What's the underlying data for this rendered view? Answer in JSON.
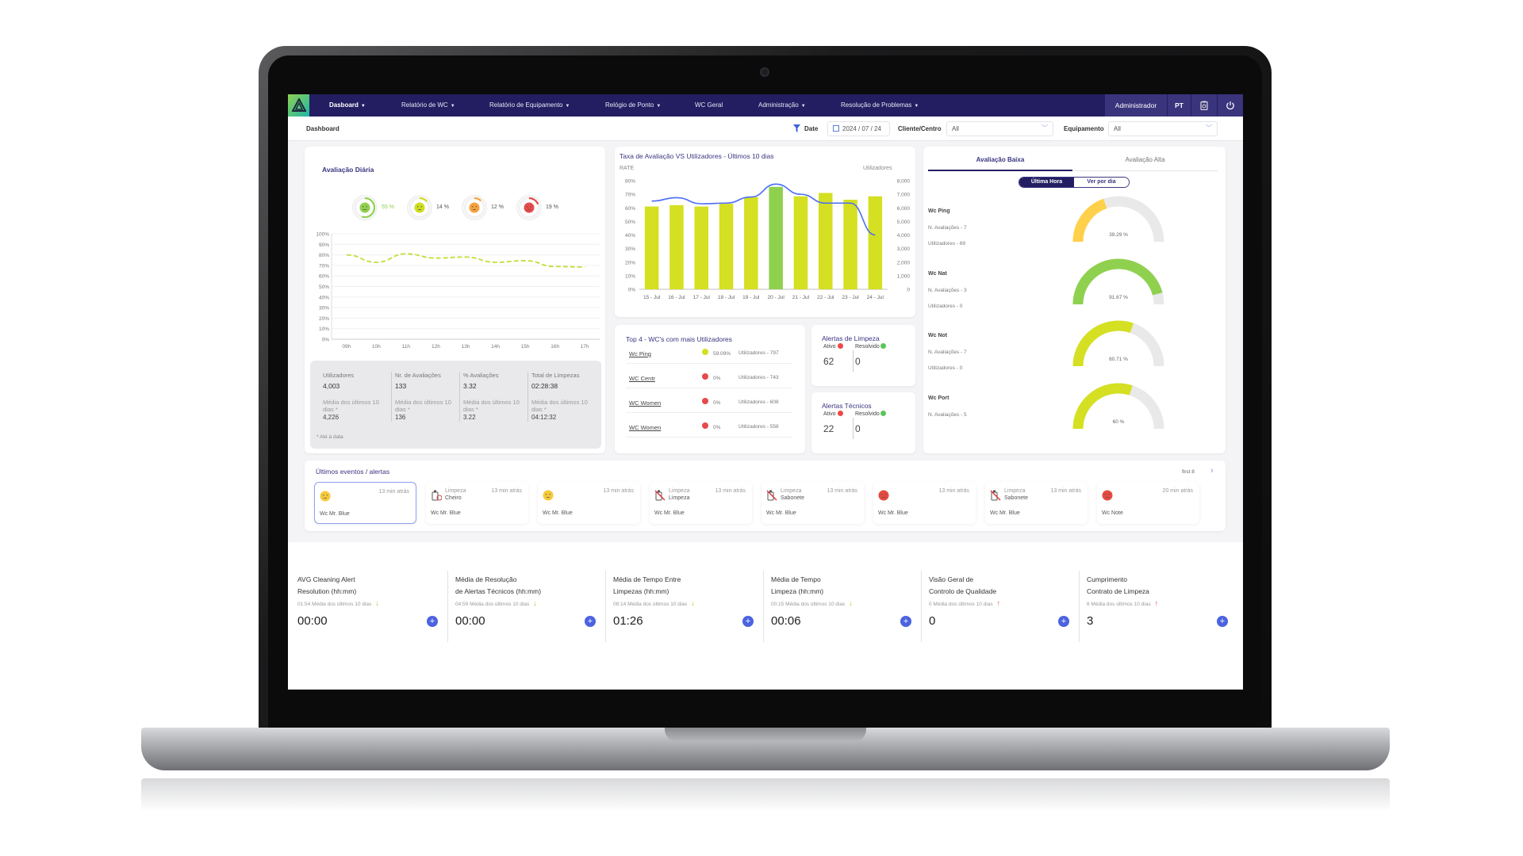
{
  "nav": {
    "items": [
      {
        "label": "Dasboard",
        "caret": true,
        "active": true
      },
      {
        "label": "Relatório de WC",
        "caret": true
      },
      {
        "label": "Relatório de Equipamento",
        "caret": true
      },
      {
        "label": "Relógio de Ponto",
        "caret": true
      },
      {
        "label": "WC Geral",
        "caret": false
      },
      {
        "label": "Administração",
        "caret": true
      },
      {
        "label": "Resolução de Problemas",
        "caret": true
      }
    ],
    "user": "Administrador",
    "language": "PT",
    "icons": [
      "clipboard-icon",
      "power-icon"
    ]
  },
  "subheader": {
    "breadcrumb": "Dashboard",
    "date_label": "Date",
    "date_value": "2024 / 07 / 24",
    "client_label": "Cliente/Centro",
    "client_value": "All",
    "equipment_label": "Equipamento",
    "equipment_value": "All"
  },
  "daily": {
    "title": "Avaliação Diária",
    "ratings": [
      {
        "pct": 55,
        "label": "55 %",
        "color": "#8fd14f",
        "mood": "happy"
      },
      {
        "pct": 14,
        "label": "14 %",
        "color": "#cfdc1e",
        "mood": "neutral"
      },
      {
        "pct": 12,
        "label": "12 %",
        "color": "#f7a13c",
        "mood": "unhappy"
      },
      {
        "pct": 19,
        "label": "19 %",
        "color": "#e64a4a",
        "mood": "angry"
      }
    ],
    "stats": [
      {
        "label": "Utilizadores",
        "value": "4,003",
        "avg_label": "Média dos últimos 10 dias *",
        "avg": "4,226"
      },
      {
        "label": "Nr. de Avaliações",
        "value": "133",
        "avg_label": "Média dos últimos 10 dias *",
        "avg": "136"
      },
      {
        "label": "% Avaliações",
        "value": "3.32",
        "avg_label": "Média dos últimos 10 dias *",
        "avg": "3.22"
      },
      {
        "label": "Total de Limpezas",
        "value": "02:28:38",
        "avg_label": "Média dos últimos 10 dias *",
        "avg": "04:12:32"
      }
    ],
    "footnote": "* Até à data"
  },
  "top4": {
    "title": "Top 4 - WC's com mais Utilizadores",
    "rows": [
      {
        "name": "Wc Ping",
        "dot": "#d4e021",
        "pct": "59.09%",
        "users": "Utilizadores - 797"
      },
      {
        "name": "WC Centr",
        "dot": "#e64a4a",
        "pct": "0%",
        "users": "Utilizadores - 743"
      },
      {
        "name": "WC Women",
        "dot": "#e64a4a",
        "pct": "0%",
        "users": "Utilizadores - 608"
      },
      {
        "name": "WC Women",
        "dot": "#e64a4a",
        "pct": "0%",
        "users": "Utilizadores - 558"
      }
    ]
  },
  "alerts": [
    {
      "title": "Alertas de Limpeza",
      "active_label": "Ativo",
      "active": "62",
      "resolved_label": "Resolvido",
      "resolved": "0"
    },
    {
      "title": "Alertas Técnicos",
      "active_label": "Ativo",
      "active": "22",
      "resolved_label": "Resolvido",
      "resolved": "0"
    }
  ],
  "rating_panel": {
    "tabs": [
      "Avaliação Baixa",
      "Avaliação Alta"
    ],
    "active_tab": 0,
    "toggle": [
      "Última Hora",
      "Ver por dia"
    ],
    "active_toggle": 0,
    "items": [
      {
        "name": "Wc Ping",
        "lines": [
          "N. Avaliações - 7",
          "Utilizadores - 69"
        ],
        "pct": 39.29,
        "label": "39.29 %",
        "color": "#ffd04a"
      },
      {
        "name": "Wc Nat",
        "lines": [
          "N. Avaliações - 3",
          "Utilizadores - 0"
        ],
        "pct": 91.67,
        "label": "91.67 %",
        "color": "#8fd14f"
      },
      {
        "name": "Wc Not",
        "lines": [
          "N. Avaliações - 7",
          "Utilizadores - 0"
        ],
        "pct": 60.71,
        "label": "60.71 %",
        "color": "#d4e021"
      },
      {
        "name": "Wc Port",
        "lines": [
          "N. Avaliações - 5"
        ],
        "pct": 60,
        "label": "60 %",
        "color": "#d4e021"
      }
    ]
  },
  "events": {
    "title": "Últimos eventos / alertas",
    "paging": "first 8",
    "items": [
      {
        "icon": "neutral-face-icon",
        "type": "",
        "detail": "",
        "time": "13 min atrás",
        "location": "Wc Mr. Blue",
        "selected": true
      },
      {
        "icon": "odor-icon",
        "type": "Limpeza",
        "detail": "Cheiro",
        "time": "13 min atrás",
        "location": "Wc Mr. Blue"
      },
      {
        "icon": "neutral-face-icon",
        "type": "",
        "detail": "",
        "time": "13 min atrás",
        "location": "Wc Mr. Blue"
      },
      {
        "icon": "cleaning-icon",
        "type": "Limpeza",
        "detail": "Limpeza",
        "time": "13 min atrás",
        "location": "Wc Mr. Blue"
      },
      {
        "icon": "soap-icon",
        "type": "Limpeza",
        "detail": "Sabonete",
        "time": "13 min atrás",
        "location": "Wc Mr. Blue"
      },
      {
        "icon": "sad-face-icon",
        "type": "",
        "detail": "",
        "time": "13 min atrás",
        "location": "Wc Mr. Blue"
      },
      {
        "icon": "soap-icon",
        "type": "Limpeza",
        "detail": "Sabonete",
        "time": "13 min atrás",
        "location": "Wc Mr. Blue"
      },
      {
        "icon": "sad-face-icon",
        "type": "",
        "detail": "",
        "time": "20 min atrás",
        "location": "Wc Note"
      }
    ]
  },
  "kpis": [
    {
      "title1": "AVG Cleaning Alert",
      "title2": "Resolution (hh:mm)",
      "sub": "01:54 Média dos últimos 10 dias",
      "trend": "down",
      "value": "00:00"
    },
    {
      "title1": "Média de Resolução",
      "title2": "de Alertas Técnicos (hh:mm)",
      "sub": "04:59 Média dos últimos 10 dias",
      "trend": "down",
      "value": "00:00"
    },
    {
      "title1": "Média de Tempo Entre",
      "title2": "Limpezas (hh:mm)",
      "sub": "08:14 Média dos últimos 10 dias",
      "trend": "down",
      "value": "01:26"
    },
    {
      "title1": "Média de Tempo",
      "title2": "Limpeza (hh:mm)",
      "sub": "00:15 Média dos últimos 10 dias",
      "trend": "down",
      "value": "00:06"
    },
    {
      "title1": "Visão Geral de",
      "title2": "Controlo de Qualidade",
      "sub": "0 Média dos últimos 10 dias",
      "trend": "up",
      "value": "0"
    },
    {
      "title1": "Cumprimento",
      "title2": "Contrato de Limpeza",
      "sub": "6 Média dos últimos 10 dias",
      "trend": "up",
      "value": "3"
    }
  ],
  "colors": {
    "nav": "#231e62",
    "accent": "#3a3580",
    "lime": "#d4e021",
    "green": "#8fd14f",
    "blue_line": "#4a6cf7",
    "red": "#e64a4a",
    "plus": "#4b63e0"
  },
  "chart_data": [
    {
      "type": "line",
      "title": "Avaliação Diária",
      "categories": [
        "09h",
        "10h",
        "11h",
        "12h",
        "13h",
        "14h",
        "15h",
        "16h",
        "17h"
      ],
      "values": [
        80,
        73,
        81,
        77,
        78,
        73,
        74.5,
        69,
        68.5
      ],
      "ylim": [
        0,
        100
      ],
      "yticks": [
        "0%",
        "10%",
        "20%",
        "30%",
        "40%",
        "50%",
        "60%",
        "70%",
        "80%",
        "90%",
        "100%"
      ],
      "style": "dashed",
      "color": "#c5dc3a",
      "grid": true
    },
    {
      "type": "bar+line",
      "title": "Taxa de Avaliação VS Utilizadores - Últimos 10 dias",
      "ylabel": "RATE",
      "y2label": "Utilizadores",
      "categories": [
        "15 - Jul",
        "16 - Jul",
        "17 - Jul",
        "18 - Jul",
        "19 - Jul",
        "20 - Jul",
        "21 - Jul",
        "22 - Jul",
        "23 - Jul",
        "24 - Jul"
      ],
      "series": [
        {
          "type": "bar",
          "axis": "left",
          "values": [
            61,
            62,
            61,
            63,
            68,
            75.5,
            68.5,
            71,
            66,
            68.5
          ],
          "color": "#d4e021",
          "highlight_index": 5,
          "highlight_color": "#8fd14f"
        },
        {
          "type": "line",
          "axis": "right",
          "values": [
            6500,
            6750,
            6300,
            6350,
            6800,
            7750,
            7000,
            6350,
            6350,
            4000
          ],
          "color": "#4a6cf7"
        }
      ],
      "ylim": [
        0,
        80
      ],
      "y2lim": [
        0,
        8000
      ],
      "yticks": [
        "0%",
        "10%",
        "20%",
        "30%",
        "40%",
        "50%",
        "60%",
        "70%",
        "80%"
      ],
      "y2ticks": [
        "0",
        "1,000",
        "2,000",
        "3,000",
        "4,000",
        "5,000",
        "6,000",
        "7,000",
        "8,000"
      ]
    }
  ]
}
